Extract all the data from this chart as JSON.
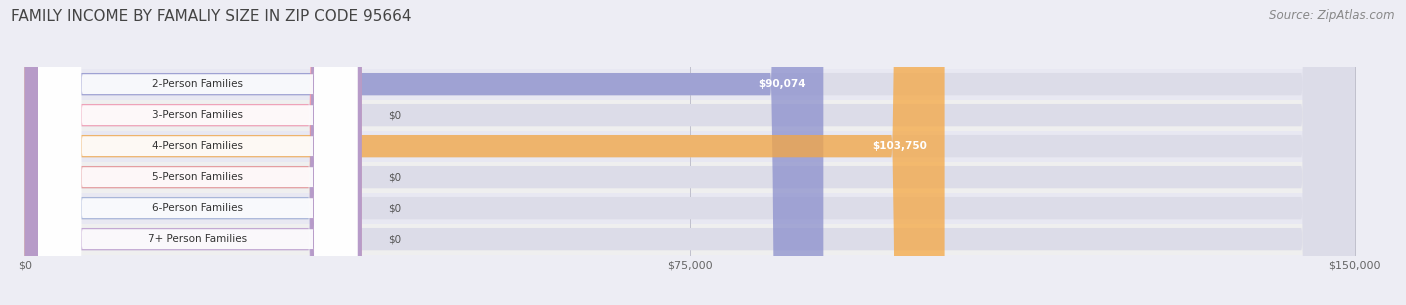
{
  "title": "FAMILY INCOME BY FAMALIY SIZE IN ZIP CODE 95664",
  "source": "Source: ZipAtlas.com",
  "categories": [
    "2-Person Families",
    "3-Person Families",
    "4-Person Families",
    "5-Person Families",
    "6-Person Families",
    "7+ Person Families"
  ],
  "values": [
    90074,
    0,
    103750,
    0,
    0,
    0
  ],
  "bar_colors": [
    "#8b8fcc",
    "#f590aa",
    "#f5a742",
    "#e88a8a",
    "#99aad4",
    "#bb99cc"
  ],
  "xlim_data": [
    0,
    150000
  ],
  "xticks": [
    0,
    75000,
    150000
  ],
  "xtick_labels": [
    "$0",
    "$75,000",
    "$150,000"
  ],
  "background_color": "#ededf4",
  "bar_bg_color": "#e0e0ea",
  "row_bg_colors": [
    "#e8e8f0",
    "#eeeeee",
    "#e8e8f0",
    "#eeeeee",
    "#e8e8f0",
    "#eeeeee"
  ],
  "title_fontsize": 11,
  "source_fontsize": 8.5
}
